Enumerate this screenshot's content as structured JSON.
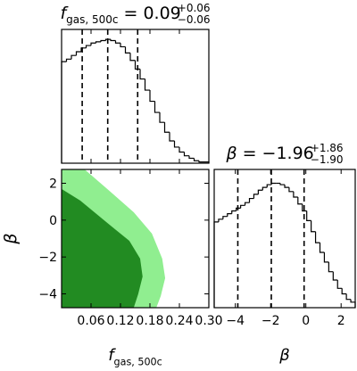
{
  "chart_data": [
    {
      "type": "histogram",
      "title": {
        "symbol": "f",
        "symbol_sub": "gas, 500c",
        "value": "= 0.09",
        "upper": "+0.06",
        "lower": "−0.06"
      },
      "bins": [
        0,
        0.01,
        0.02,
        0.03,
        0.04,
        0.05,
        0.06,
        0.07,
        0.08,
        0.09,
        0.1,
        0.11,
        0.12,
        0.13,
        0.14,
        0.15,
        0.16,
        0.17,
        0.18,
        0.19,
        0.2,
        0.21,
        0.22,
        0.23,
        0.24,
        0.25,
        0.26,
        0.27,
        0.28,
        0.29,
        0.3
      ],
      "values": [
        0.82,
        0.84,
        0.87,
        0.9,
        0.93,
        0.95,
        0.97,
        0.98,
        0.99,
        1.0,
        0.99,
        0.97,
        0.94,
        0.89,
        0.83,
        0.76,
        0.68,
        0.59,
        0.5,
        0.41,
        0.33,
        0.25,
        0.18,
        0.13,
        0.09,
        0.06,
        0.04,
        0.02,
        0.01,
        0.01
      ],
      "color": "#000000",
      "quantiles": [
        0.042,
        0.094,
        0.155
      ],
      "xlim": [
        0,
        0.3
      ],
      "ylim": [
        0,
        1.08
      ],
      "xticks": [
        0.06,
        0.12,
        0.18,
        0.24,
        0.3
      ],
      "xtick_labels": false
    },
    {
      "type": "contour",
      "xlabel": {
        "symbol": "f",
        "symbol_sub": "gas, 500c"
      },
      "ylabel": {
        "symbol": "β"
      },
      "series": [
        {
          "color": "#90ee90",
          "x": [
            0,
            0.047,
            0.093,
            0.147,
            0.184,
            0.205,
            0.211,
            0.202,
            0.193,
            0
          ],
          "y": [
            2.75,
            2.75,
            1.69,
            0.43,
            -0.73,
            -2.09,
            -3.15,
            -4.12,
            -4.75,
            -4.75
          ]
        },
        {
          "color": "#228b22",
          "x": [
            0,
            0.038,
            0.093,
            0.138,
            0.16,
            0.165,
            0.156,
            0.147,
            0
          ],
          "y": [
            1.69,
            1.06,
            -0.15,
            -1.12,
            -2.09,
            -3.06,
            -4.02,
            -4.75,
            -4.75
          ]
        }
      ],
      "xlim": [
        0,
        0.3
      ],
      "ylim": [
        -4.75,
        2.75
      ],
      "xticks": [
        0.06,
        0.12,
        0.18,
        0.24,
        {
          "value": 0.3,
          "label": "0.30"
        }
      ],
      "yticks": [
        2,
        0,
        {
          "value": -2,
          "label": "−2"
        },
        {
          "value": -4,
          "label": "−4"
        }
      ],
      "xtick_labels": true
    },
    {
      "type": "histogram",
      "title": {
        "symbol": "β",
        "value": "= −1.96",
        "upper": "+1.86",
        "lower": "−1.90"
      },
      "xlabel": {
        "symbol": "β"
      },
      "bins": [
        -5.2,
        -4.95,
        -4.7,
        -4.45,
        -4.2,
        -3.95,
        -3.7,
        -3.45,
        -3.2,
        -2.95,
        -2.7,
        -2.45,
        -2.2,
        -1.95,
        -1.7,
        -1.45,
        -1.2,
        -0.95,
        -0.7,
        -0.45,
        -0.2,
        0.05,
        0.3,
        0.55,
        0.8,
        1.05,
        1.3,
        1.55,
        1.8,
        2.05,
        2.3,
        2.55,
        2.8
      ],
      "values": [
        0.62,
        0.64,
        0.66,
        0.68,
        0.7,
        0.72,
        0.74,
        0.76,
        0.79,
        0.82,
        0.85,
        0.87,
        0.89,
        0.9,
        0.9,
        0.89,
        0.87,
        0.84,
        0.8,
        0.75,
        0.7,
        0.63,
        0.55,
        0.47,
        0.4,
        0.33,
        0.26,
        0.2,
        0.14,
        0.1,
        0.06,
        0.04
      ],
      "color": "#000000",
      "quantiles": [
        -3.86,
        -1.96,
        -0.1
      ],
      "xlim": [
        -5.2,
        2.8
      ],
      "ylim": [
        0,
        1
      ],
      "xticks": [
        {
          "value": -4,
          "label": "−4"
        },
        {
          "value": -2,
          "label": "−2"
        },
        0,
        2
      ],
      "xtick_labels": true
    }
  ]
}
